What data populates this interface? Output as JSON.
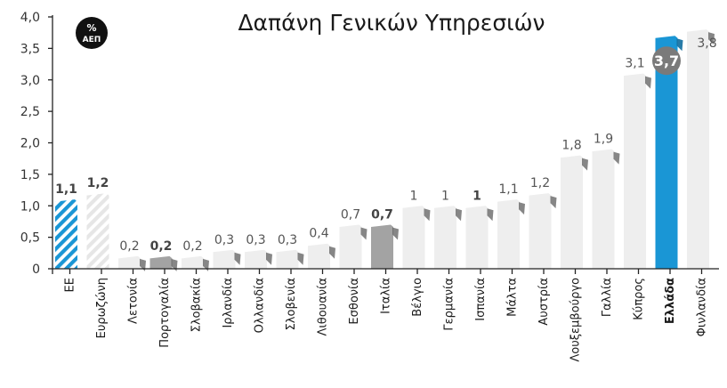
{
  "chart_data": {
    "type": "bar",
    "title": "Δαπάνη Γενικών Υπηρεσιών",
    "unit_badge": {
      "symbol": "%",
      "label": "ΑΕΠ"
    },
    "ylim": [
      0,
      4.0
    ],
    "yticks": [
      "0",
      "0,5",
      "1,0",
      "1,5",
      "2,0",
      "2,5",
      "3,0",
      "3,5",
      "4,0"
    ],
    "grid": false,
    "categories": [
      "ΕΕ",
      "Ευρωζώνη",
      "Λετονία",
      "Πορτογαλία",
      "Σλοβακία",
      "Ιρλανδία",
      "Ολλανδία",
      "Σλοβενία",
      "Λιθουανία",
      "Εσθονία",
      "Ιταλία",
      "Βέλγιο",
      "Γερμανία",
      "Ισπανία",
      "Μάλτα",
      "Αυστρία",
      "Λουξεμβούργο",
      "Γαλλία",
      "Κύπρος",
      "Ελλάδα",
      "Φινλανδία"
    ],
    "values": [
      1.1,
      1.2,
      0.2,
      0.2,
      0.2,
      0.3,
      0.3,
      0.3,
      0.4,
      0.7,
      0.7,
      1,
      1,
      1,
      1.1,
      1.2,
      1.8,
      1.9,
      3.1,
      3.7,
      3.8
    ],
    "value_labels": [
      "1,1",
      "1,2",
      "0,2",
      "0,2",
      "0,2",
      "0,3",
      "0,3",
      "0,3",
      "0,4",
      "0,7",
      "0,7",
      "1",
      "1",
      "1",
      "1,1",
      "1,2",
      "1,8",
      "1,9",
      "3,1",
      "3,7",
      "3,8"
    ],
    "styles": [
      "eu",
      "eurozone",
      "plain",
      "darkgray",
      "plain",
      "plain",
      "plain",
      "plain",
      "plain",
      "plain",
      "darkgray",
      "plain",
      "plain",
      "plain",
      "plain",
      "plain",
      "plain",
      "plain",
      "plain",
      "greece",
      "plain"
    ],
    "colors": {
      "accent_blue": "#1a96d5",
      "hatch_gray": "#e6e6e6",
      "plain_bar": "#eeeeee",
      "dark_gray_bar": "#a3a3a3",
      "value_badge": "#7a7a7a",
      "unit_badge_bg": "#111111"
    }
  }
}
